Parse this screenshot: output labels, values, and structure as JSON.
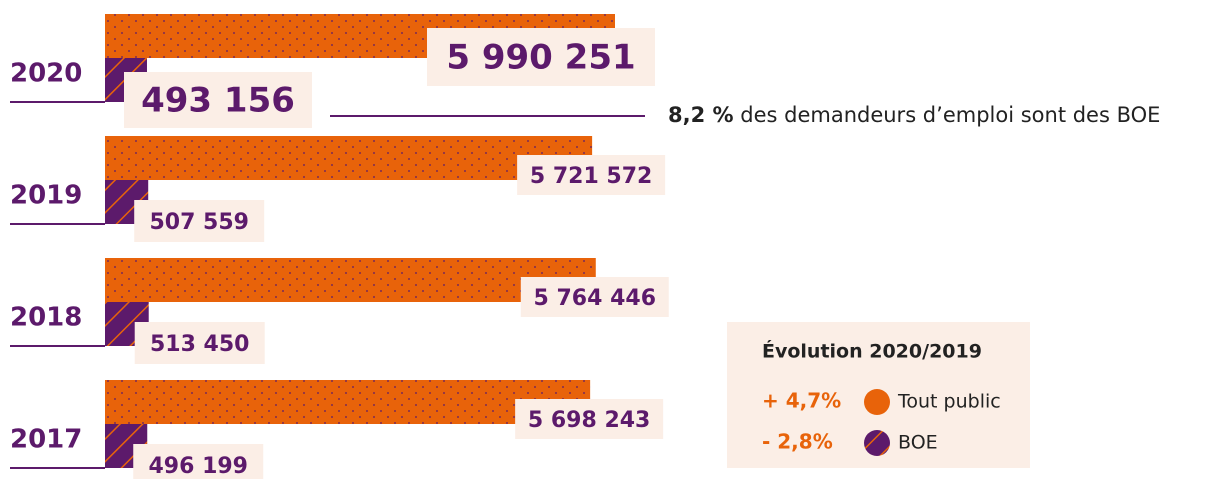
{
  "chart_data": {
    "type": "bar",
    "categories": [
      "2020",
      "2019",
      "2018",
      "2017"
    ],
    "series": [
      {
        "name": "Tout public",
        "color": "#e8630a",
        "values": [
          5990251,
          5721572,
          5764446,
          5698243
        ],
        "value_labels": [
          "5 990 251",
          "5 721 572",
          "5 764 446",
          "5 698 243"
        ]
      },
      {
        "name": "BOE",
        "color": "#5c1a6b",
        "values": [
          493156,
          507559,
          513450,
          496199
        ],
        "value_labels": [
          "493 156",
          "507 559",
          "513 450",
          "496 199"
        ]
      }
    ],
    "annotation": {
      "value_label": "8,2 %",
      "text": "des demandeurs d’emploi sont des BOE"
    },
    "evolution": {
      "title": "Évolution 2020/2019",
      "changes": [
        "+ 4,7%",
        "- 2,8%"
      ]
    }
  }
}
